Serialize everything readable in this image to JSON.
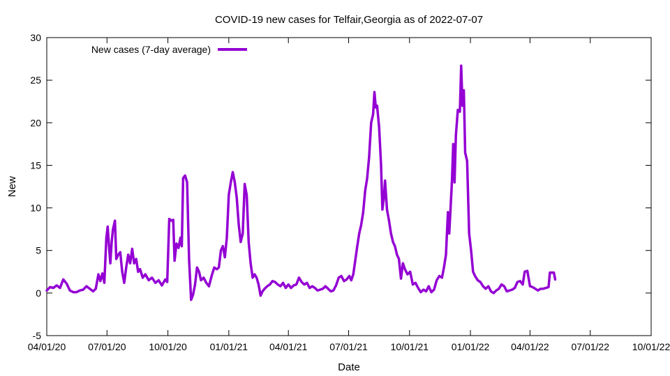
{
  "chart_data": {
    "type": "line",
    "title": "COVID-19 new cases for Telfair,Georgia as of 2022-07-07",
    "xlabel": "Date",
    "ylabel": "New",
    "x_range": [
      "2020-04-01",
      "2022-10-01"
    ],
    "ylim": [
      -5,
      30
    ],
    "y_ticks": [
      -5,
      0,
      5,
      10,
      15,
      20,
      25,
      30
    ],
    "x_ticks": [
      {
        "date": "2020-04-01",
        "label": "04/01/20"
      },
      {
        "date": "2020-07-01",
        "label": "07/01/20"
      },
      {
        "date": "2020-10-01",
        "label": "10/01/20"
      },
      {
        "date": "2021-01-01",
        "label": "01/01/21"
      },
      {
        "date": "2021-04-01",
        "label": "04/01/21"
      },
      {
        "date": "2021-07-01",
        "label": "07/01/21"
      },
      {
        "date": "2021-10-01",
        "label": "10/01/21"
      },
      {
        "date": "2022-01-01",
        "label": "01/01/22"
      },
      {
        "date": "2022-04-01",
        "label": "04/01/22"
      },
      {
        "date": "2022-07-01",
        "label": "07/01/22"
      },
      {
        "date": "2022-10-01",
        "label": "10/01/22"
      }
    ],
    "grid": false,
    "legend_position": "top-left",
    "series": [
      {
        "name": "New cases (7-day average)",
        "color": "#9400d3",
        "points": [
          [
            "2020-04-01",
            0.3
          ],
          [
            "2020-04-06",
            0.7
          ],
          [
            "2020-04-11",
            0.6
          ],
          [
            "2020-04-16",
            0.9
          ],
          [
            "2020-04-21",
            0.6
          ],
          [
            "2020-04-26",
            1.6
          ],
          [
            "2020-05-01",
            1.1
          ],
          [
            "2020-05-06",
            0.3
          ],
          [
            "2020-05-11",
            0.1
          ],
          [
            "2020-05-16",
            0.1
          ],
          [
            "2020-05-21",
            0.3
          ],
          [
            "2020-05-26",
            0.4
          ],
          [
            "2020-05-31",
            0.8
          ],
          [
            "2020-06-05",
            0.5
          ],
          [
            "2020-06-10",
            0.2
          ],
          [
            "2020-06-14",
            0.5
          ],
          [
            "2020-06-18",
            2.2
          ],
          [
            "2020-06-21",
            1.4
          ],
          [
            "2020-06-24",
            2.3
          ],
          [
            "2020-06-27",
            1.2
          ],
          [
            "2020-06-30",
            6.5
          ],
          [
            "2020-07-02",
            7.8
          ],
          [
            "2020-07-04",
            5.5
          ],
          [
            "2020-07-06",
            3.5
          ],
          [
            "2020-07-08",
            6.0
          ],
          [
            "2020-07-10",
            7.5
          ],
          [
            "2020-07-13",
            8.5
          ],
          [
            "2020-07-15",
            4.0
          ],
          [
            "2020-07-18",
            4.5
          ],
          [
            "2020-07-21",
            4.8
          ],
          [
            "2020-07-24",
            2.5
          ],
          [
            "2020-07-27",
            1.2
          ],
          [
            "2020-07-30",
            3.0
          ],
          [
            "2020-08-02",
            4.5
          ],
          [
            "2020-08-05",
            3.5
          ],
          [
            "2020-08-08",
            5.2
          ],
          [
            "2020-08-11",
            3.5
          ],
          [
            "2020-08-14",
            4.0
          ],
          [
            "2020-08-17",
            2.5
          ],
          [
            "2020-08-20",
            2.8
          ],
          [
            "2020-08-24",
            1.8
          ],
          [
            "2020-08-28",
            2.2
          ],
          [
            "2020-09-02",
            1.5
          ],
          [
            "2020-09-07",
            1.8
          ],
          [
            "2020-09-12",
            1.2
          ],
          [
            "2020-09-17",
            1.5
          ],
          [
            "2020-09-22",
            0.9
          ],
          [
            "2020-09-27",
            1.6
          ],
          [
            "2020-09-30",
            1.3
          ],
          [
            "2020-10-03",
            8.7
          ],
          [
            "2020-10-06",
            8.5
          ],
          [
            "2020-10-09",
            8.6
          ],
          [
            "2020-10-11",
            3.8
          ],
          [
            "2020-10-14",
            5.8
          ],
          [
            "2020-10-17",
            5.3
          ],
          [
            "2020-10-20",
            6.5
          ],
          [
            "2020-10-22",
            5.5
          ],
          [
            "2020-10-24",
            13.5
          ],
          [
            "2020-10-27",
            13.8
          ],
          [
            "2020-10-30",
            13.0
          ],
          [
            "2020-11-02",
            4.0
          ],
          [
            "2020-11-05",
            -0.8
          ],
          [
            "2020-11-08",
            -0.2
          ],
          [
            "2020-11-11",
            1.0
          ],
          [
            "2020-11-14",
            3.0
          ],
          [
            "2020-11-17",
            2.5
          ],
          [
            "2020-11-20",
            1.5
          ],
          [
            "2020-11-24",
            1.8
          ],
          [
            "2020-11-28",
            1.2
          ],
          [
            "2020-12-02",
            0.8
          ],
          [
            "2020-12-06",
            2.0
          ],
          [
            "2020-12-10",
            3.0
          ],
          [
            "2020-12-14",
            2.8
          ],
          [
            "2020-12-17",
            3.0
          ],
          [
            "2020-12-20",
            5.0
          ],
          [
            "2020-12-23",
            5.5
          ],
          [
            "2020-12-26",
            4.2
          ],
          [
            "2020-12-29",
            6.5
          ],
          [
            "2021-01-01",
            11.5
          ],
          [
            "2021-01-04",
            13.0
          ],
          [
            "2021-01-07",
            14.2
          ],
          [
            "2021-01-10",
            13.0
          ],
          [
            "2021-01-13",
            11.2
          ],
          [
            "2021-01-16",
            8.0
          ],
          [
            "2021-01-19",
            6.0
          ],
          [
            "2021-01-22",
            7.0
          ],
          [
            "2021-01-25",
            12.8
          ],
          [
            "2021-01-28",
            11.5
          ],
          [
            "2021-01-31",
            6.0
          ],
          [
            "2021-02-03",
            3.5
          ],
          [
            "2021-02-06",
            1.8
          ],
          [
            "2021-02-09",
            2.2
          ],
          [
            "2021-02-12",
            1.8
          ],
          [
            "2021-02-15",
            1.0
          ],
          [
            "2021-02-18",
            -0.3
          ],
          [
            "2021-02-21",
            0.2
          ],
          [
            "2021-02-24",
            0.5
          ],
          [
            "2021-02-28",
            0.8
          ],
          [
            "2021-03-04",
            1.0
          ],
          [
            "2021-03-08",
            1.4
          ],
          [
            "2021-03-12",
            1.3
          ],
          [
            "2021-03-16",
            1.0
          ],
          [
            "2021-03-20",
            0.8
          ],
          [
            "2021-03-24",
            1.2
          ],
          [
            "2021-03-28",
            0.6
          ],
          [
            "2021-04-01",
            1.0
          ],
          [
            "2021-04-05",
            0.6
          ],
          [
            "2021-04-09",
            0.9
          ],
          [
            "2021-04-13",
            1.0
          ],
          [
            "2021-04-17",
            1.8
          ],
          [
            "2021-04-21",
            1.3
          ],
          [
            "2021-04-25",
            1.0
          ],
          [
            "2021-04-29",
            1.2
          ],
          [
            "2021-05-03",
            0.6
          ],
          [
            "2021-05-07",
            0.8
          ],
          [
            "2021-05-11",
            0.6
          ],
          [
            "2021-05-15",
            0.3
          ],
          [
            "2021-05-19",
            0.4
          ],
          [
            "2021-05-23",
            0.5
          ],
          [
            "2021-05-27",
            0.8
          ],
          [
            "2021-05-31",
            0.5
          ],
          [
            "2021-06-04",
            0.2
          ],
          [
            "2021-06-08",
            0.3
          ],
          [
            "2021-06-12",
            0.9
          ],
          [
            "2021-06-16",
            1.8
          ],
          [
            "2021-06-20",
            2.0
          ],
          [
            "2021-06-24",
            1.4
          ],
          [
            "2021-06-28",
            1.6
          ],
          [
            "2021-07-02",
            2.0
          ],
          [
            "2021-07-05",
            1.5
          ],
          [
            "2021-07-08",
            2.2
          ],
          [
            "2021-07-11",
            3.8
          ],
          [
            "2021-07-14",
            5.5
          ],
          [
            "2021-07-17",
            7.0
          ],
          [
            "2021-07-20",
            8.0
          ],
          [
            "2021-07-23",
            9.5
          ],
          [
            "2021-07-26",
            12.0
          ],
          [
            "2021-07-29",
            13.5
          ],
          [
            "2021-08-01",
            16.0
          ],
          [
            "2021-08-04",
            20.0
          ],
          [
            "2021-08-07",
            21.0
          ],
          [
            "2021-08-09",
            23.6
          ],
          [
            "2021-08-11",
            21.8
          ],
          [
            "2021-08-13",
            22.0
          ],
          [
            "2021-08-16",
            19.5
          ],
          [
            "2021-08-19",
            15.0
          ],
          [
            "2021-08-21",
            9.8
          ],
          [
            "2021-08-23",
            11.0
          ],
          [
            "2021-08-25",
            13.2
          ],
          [
            "2021-08-28",
            9.8
          ],
          [
            "2021-08-31",
            8.5
          ],
          [
            "2021-09-03",
            7.0
          ],
          [
            "2021-09-06",
            6.0
          ],
          [
            "2021-09-09",
            5.5
          ],
          [
            "2021-09-12",
            4.5
          ],
          [
            "2021-09-15",
            4.0
          ],
          [
            "2021-09-18",
            1.7
          ],
          [
            "2021-09-21",
            3.5
          ],
          [
            "2021-09-24",
            2.8
          ],
          [
            "2021-09-28",
            2.2
          ],
          [
            "2021-10-02",
            2.5
          ],
          [
            "2021-10-06",
            1.0
          ],
          [
            "2021-10-10",
            1.2
          ],
          [
            "2021-10-14",
            0.6
          ],
          [
            "2021-10-18",
            0.1
          ],
          [
            "2021-10-22",
            0.4
          ],
          [
            "2021-10-26",
            0.2
          ],
          [
            "2021-10-30",
            0.8
          ],
          [
            "2021-11-03",
            0.1
          ],
          [
            "2021-11-07",
            0.4
          ],
          [
            "2021-11-11",
            1.5
          ],
          [
            "2021-11-15",
            2.0
          ],
          [
            "2021-11-19",
            1.8
          ],
          [
            "2021-11-22",
            3.0
          ],
          [
            "2021-11-25",
            4.5
          ],
          [
            "2021-11-28",
            9.5
          ],
          [
            "2021-11-30",
            7.0
          ],
          [
            "2021-12-02",
            10.0
          ],
          [
            "2021-12-04",
            13.0
          ],
          [
            "2021-12-06",
            17.5
          ],
          [
            "2021-12-08",
            13.0
          ],
          [
            "2021-12-10",
            18.5
          ],
          [
            "2021-12-13",
            21.5
          ],
          [
            "2021-12-16",
            21.3
          ],
          [
            "2021-12-18",
            26.7
          ],
          [
            "2021-12-20",
            22.0
          ],
          [
            "2021-12-22",
            23.8
          ],
          [
            "2021-12-24",
            16.5
          ],
          [
            "2021-12-27",
            15.5
          ],
          [
            "2021-12-30",
            7.0
          ],
          [
            "2022-01-02",
            5.0
          ],
          [
            "2022-01-05",
            2.5
          ],
          [
            "2022-01-08",
            2.0
          ],
          [
            "2022-01-12",
            1.5
          ],
          [
            "2022-01-16",
            1.3
          ],
          [
            "2022-01-20",
            0.8
          ],
          [
            "2022-01-24",
            0.5
          ],
          [
            "2022-01-28",
            0.8
          ],
          [
            "2022-02-01",
            0.2
          ],
          [
            "2022-02-05",
            0.0
          ],
          [
            "2022-02-09",
            0.3
          ],
          [
            "2022-02-13",
            0.5
          ],
          [
            "2022-02-17",
            1.0
          ],
          [
            "2022-02-21",
            0.8
          ],
          [
            "2022-02-25",
            0.2
          ],
          [
            "2022-03-01",
            0.3
          ],
          [
            "2022-03-05",
            0.4
          ],
          [
            "2022-03-09",
            0.6
          ],
          [
            "2022-03-13",
            1.3
          ],
          [
            "2022-03-17",
            1.4
          ],
          [
            "2022-03-21",
            1.0
          ],
          [
            "2022-03-24",
            2.5
          ],
          [
            "2022-03-28",
            2.6
          ],
          [
            "2022-04-01",
            0.8
          ],
          [
            "2022-04-05",
            0.7
          ],
          [
            "2022-04-09",
            0.5
          ],
          [
            "2022-04-13",
            0.3
          ],
          [
            "2022-04-17",
            0.5
          ],
          [
            "2022-04-21",
            0.5
          ],
          [
            "2022-04-25",
            0.6
          ],
          [
            "2022-04-29",
            0.7
          ],
          [
            "2022-05-01",
            2.4
          ],
          [
            "2022-05-04",
            2.4
          ],
          [
            "2022-05-07",
            2.4
          ],
          [
            "2022-05-09",
            1.6
          ]
        ]
      }
    ]
  }
}
